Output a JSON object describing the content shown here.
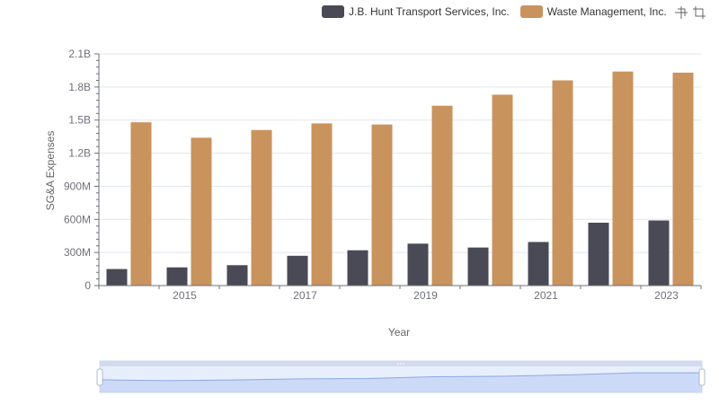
{
  "legend": {
    "items": [
      {
        "name": "J.B. Hunt Transport Services, Inc.",
        "color": "#4a4a56"
      },
      {
        "name": "Waste Management, Inc.",
        "color": "#c9935d"
      }
    ]
  },
  "toolbox": {
    "icons": [
      "zoom-select-icon",
      "zoom-reset-icon"
    ]
  },
  "chart_data": {
    "type": "bar",
    "categories": [
      2014,
      2015,
      2016,
      2017,
      2018,
      2019,
      2020,
      2021,
      2022,
      2023
    ],
    "x_tick_labels": [
      "2015",
      "2017",
      "2019",
      "2021",
      "2023"
    ],
    "series": [
      {
        "name": "J.B. Hunt Transport Services, Inc.",
        "color": "#4a4a56",
        "values": [
          150000000,
          165000000,
          185000000,
          270000000,
          320000000,
          380000000,
          345000000,
          395000000,
          570000000,
          590000000
        ]
      },
      {
        "name": "Waste Management, Inc.",
        "color": "#c9935d",
        "values": [
          1480000000,
          1340000000,
          1410000000,
          1470000000,
          1460000000,
          1630000000,
          1730000000,
          1860000000,
          1940000000,
          1930000000
        ]
      }
    ],
    "y_ticks": [
      "0",
      "300M",
      "600M",
      "900M",
      "1.2B",
      "1.5B",
      "1.8B",
      "2.1B"
    ],
    "ylim": [
      0,
      2100000000
    ],
    "xlabel": "Year",
    "ylabel": "SG&A Expenses",
    "grid": true,
    "legend_position": "top-right",
    "data_zoom": {
      "start": 0,
      "end": 100
    }
  }
}
